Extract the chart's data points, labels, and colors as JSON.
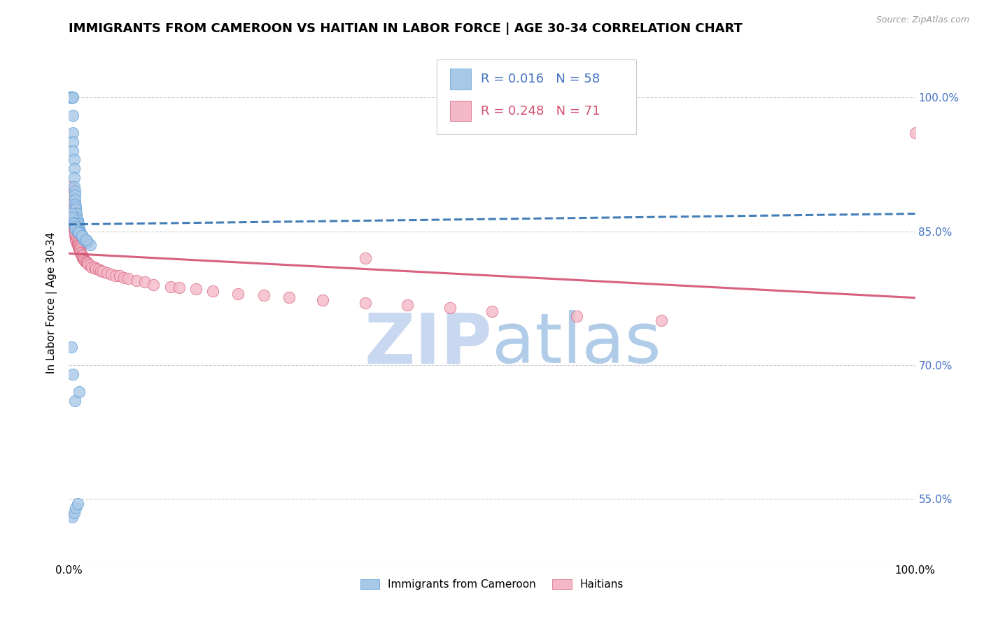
{
  "title": "IMMIGRANTS FROM CAMEROON VS HAITIAN IN LABOR FORCE | AGE 30-34 CORRELATION CHART",
  "source_text": "Source: ZipAtlas.com",
  "ylabel": "In Labor Force | Age 30-34",
  "xlim": [
    0.0,
    1.0
  ],
  "ylim": [
    0.48,
    1.06
  ],
  "yticks": [
    0.55,
    0.7,
    0.85,
    1.0
  ],
  "ytick_labels": [
    "55.0%",
    "70.0%",
    "85.0%",
    "100.0%"
  ],
  "xtick_labels": [
    "0.0%",
    "100.0%"
  ],
  "cameroon_color": "#a8c8e8",
  "cameroon_edge": "#5b9bd5",
  "haitian_color": "#f4b8c8",
  "haitian_edge": "#d4607a",
  "line_cameroon_color": "#3070b0",
  "line_haitian_color": "#d45070",
  "grid_color": "#d0d0d0",
  "background_color": "#ffffff",
  "title_fontsize": 13,
  "label_fontsize": 11,
  "tick_fontsize": 11,
  "legend_fontsize": 13,
  "watermark_fontsize": 72,
  "watermark_zip_color": "#c8d8f0",
  "watermark_atlas_color": "#b0cce8",
  "cameroon_x": [
    0.002,
    0.002,
    0.003,
    0.003,
    0.003,
    0.004,
    0.004,
    0.004,
    0.004,
    0.005,
    0.005,
    0.005,
    0.005,
    0.005,
    0.006,
    0.006,
    0.006,
    0.006,
    0.007,
    0.007,
    0.007,
    0.007,
    0.008,
    0.008,
    0.008,
    0.009,
    0.009,
    0.01,
    0.01,
    0.011,
    0.011,
    0.012,
    0.013,
    0.014,
    0.015,
    0.016,
    0.018,
    0.02,
    0.022,
    0.025,
    0.003,
    0.004,
    0.005,
    0.006,
    0.007,
    0.008,
    0.01,
    0.012,
    0.015,
    0.02,
    0.003,
    0.005,
    0.007,
    0.012,
    0.004,
    0.006,
    0.008,
    0.01
  ],
  "cameroon_y": [
    1.0,
    1.0,
    1.0,
    1.0,
    1.0,
    1.0,
    1.0,
    1.0,
    1.0,
    1.0,
    0.98,
    0.96,
    0.95,
    0.94,
    0.93,
    0.92,
    0.91,
    0.9,
    0.895,
    0.89,
    0.885,
    0.88,
    0.878,
    0.875,
    0.87,
    0.87,
    0.865,
    0.862,
    0.86,
    0.858,
    0.855,
    0.852,
    0.85,
    0.848,
    0.845,
    0.843,
    0.84,
    0.84,
    0.838,
    0.835,
    0.87,
    0.865,
    0.86,
    0.858,
    0.855,
    0.852,
    0.85,
    0.848,
    0.845,
    0.84,
    0.72,
    0.69,
    0.66,
    0.67,
    0.53,
    0.535,
    0.54,
    0.545
  ],
  "haitian_x": [
    0.002,
    0.003,
    0.003,
    0.004,
    0.004,
    0.005,
    0.005,
    0.005,
    0.006,
    0.006,
    0.006,
    0.007,
    0.007,
    0.007,
    0.008,
    0.008,
    0.009,
    0.009,
    0.01,
    0.01,
    0.01,
    0.011,
    0.011,
    0.012,
    0.012,
    0.013,
    0.013,
    0.014,
    0.014,
    0.015,
    0.015,
    0.016,
    0.017,
    0.018,
    0.019,
    0.02,
    0.021,
    0.022,
    0.023,
    0.025,
    0.027,
    0.03,
    0.032,
    0.035,
    0.038,
    0.04,
    0.045,
    0.05,
    0.055,
    0.06,
    0.065,
    0.07,
    0.08,
    0.09,
    0.1,
    0.12,
    0.13,
    0.15,
    0.17,
    0.2,
    0.23,
    0.26,
    0.3,
    0.35,
    0.4,
    0.45,
    0.5,
    0.6,
    0.7,
    1.0,
    0.35
  ],
  "haitian_y": [
    0.9,
    0.89,
    0.88,
    0.875,
    0.87,
    0.865,
    0.862,
    0.858,
    0.856,
    0.854,
    0.852,
    0.85,
    0.848,
    0.845,
    0.843,
    0.84,
    0.84,
    0.838,
    0.838,
    0.836,
    0.835,
    0.834,
    0.832,
    0.832,
    0.83,
    0.83,
    0.828,
    0.826,
    0.825,
    0.824,
    0.822,
    0.82,
    0.82,
    0.818,
    0.817,
    0.816,
    0.815,
    0.814,
    0.813,
    0.812,
    0.81,
    0.81,
    0.808,
    0.807,
    0.806,
    0.805,
    0.803,
    0.802,
    0.8,
    0.8,
    0.798,
    0.797,
    0.795,
    0.793,
    0.79,
    0.788,
    0.787,
    0.785,
    0.783,
    0.78,
    0.778,
    0.776,
    0.773,
    0.77,
    0.767,
    0.764,
    0.76,
    0.755,
    0.75,
    0.96,
    0.82
  ]
}
